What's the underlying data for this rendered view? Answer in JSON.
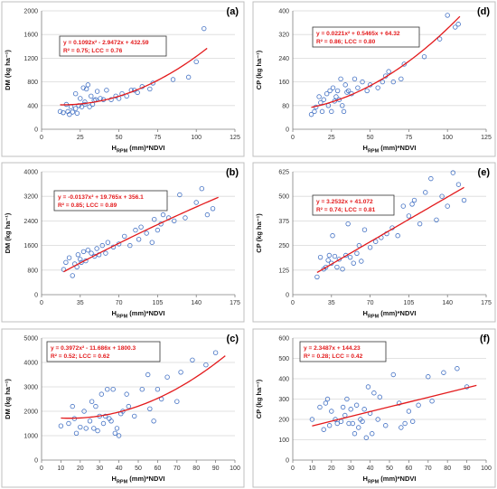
{
  "chart_data": [
    {
      "id": "a",
      "panel_label": "(a)",
      "type": "scatter",
      "xlabel_main": "H",
      "xlabel_sub": "RPM",
      "xlabel_rest": " (mm)*NDVI",
      "ylabel": "DM (kg ha⁻¹)",
      "xlim": [
        0,
        125
      ],
      "ylim": [
        0,
        2000
      ],
      "xticks": [
        0,
        25,
        50,
        75,
        100,
        125
      ],
      "yticks": [
        0,
        400,
        800,
        1200,
        1600,
        2000
      ],
      "fit": {
        "kind": "poly2",
        "a": 0.1092,
        "b": -2.9472,
        "c": 432.59,
        "xrange": [
          12,
          107
        ]
      },
      "equation": "y = 0.1092x² - 2.9472x + 432.59",
      "stats": "R² = 0.75; LCC = 0.76",
      "x": [
        12,
        14,
        16,
        17,
        18,
        19,
        20,
        22,
        22,
        23,
        24,
        25,
        26,
        27,
        28,
        28,
        29,
        30,
        31,
        32,
        33,
        34,
        35,
        36,
        38,
        40,
        42,
        45,
        48,
        50,
        52,
        55,
        58,
        60,
        62,
        65,
        70,
        72,
        85,
        95,
        100,
        105
      ],
      "y": [
        300,
        280,
        420,
        300,
        250,
        380,
        290,
        350,
        600,
        270,
        400,
        520,
        380,
        700,
        420,
        460,
        680,
        750,
        380,
        560,
        420,
        490,
        500,
        640,
        520,
        500,
        660,
        500,
        560,
        520,
        600,
        560,
        660,
        660,
        620,
        720,
        680,
        780,
        840,
        880,
        1140,
        1700
      ]
    },
    {
      "id": "d",
      "panel_label": "(d)",
      "type": "scatter",
      "xlabel_main": "H",
      "xlabel_sub": "RPM",
      "xlabel_rest": " (mm)*NDVI",
      "ylabel": "CP (kg ha⁻¹)",
      "xlim": [
        0,
        125
      ],
      "ylim": [
        0,
        400
      ],
      "xticks": [
        0,
        25,
        50,
        75,
        100,
        125
      ],
      "yticks": [
        0,
        80,
        160,
        240,
        320,
        400
      ],
      "fit": {
        "kind": "poly2",
        "a": 0.0221,
        "b": 0.5465,
        "c": 64.32,
        "xrange": [
          12,
          108
        ]
      },
      "equation": "y = 0.0221x² + 0.5465x + 64.32",
      "stats": "R² = 0.86; LCC = 0.80",
      "x": [
        12,
        14,
        15,
        17,
        18,
        19,
        20,
        22,
        23,
        24,
        25,
        26,
        27,
        28,
        29,
        30,
        31,
        32,
        33,
        34,
        35,
        36,
        38,
        40,
        42,
        45,
        48,
        50,
        55,
        58,
        60,
        62,
        65,
        70,
        72,
        85,
        95,
        100,
        105,
        107
      ],
      "y": [
        50,
        60,
        75,
        110,
        90,
        60,
        100,
        120,
        80,
        130,
        60,
        140,
        95,
        110,
        130,
        100,
        170,
        80,
        60,
        150,
        125,
        130,
        120,
        170,
        140,
        160,
        130,
        150,
        140,
        160,
        180,
        195,
        160,
        170,
        220,
        245,
        305,
        385,
        345,
        355
      ]
    },
    {
      "id": "b",
      "panel_label": "(b)",
      "type": "scatter",
      "xlabel_main": "H",
      "xlabel_sub": "RPM",
      "xlabel_rest": " (mm)*NDVI",
      "ylabel": "DM (kg ha⁻¹)",
      "xlim": [
        0,
        175
      ],
      "ylim": [
        0,
        4000
      ],
      "xticks": [
        0,
        35,
        70,
        105,
        140,
        175
      ],
      "yticks": [
        0,
        800,
        1600,
        2400,
        3200,
        4000
      ],
      "fit": {
        "kind": "poly2",
        "a": -0.0137,
        "b": 19.765,
        "c": 356.1,
        "xrange": [
          20,
          160
        ]
      },
      "equation": "y = -0.0137x² + 19.765x + 356.1",
      "stats": "R² = 0.85; LCC = 0.89",
      "x": [
        20,
        22,
        25,
        28,
        30,
        32,
        33,
        35,
        36,
        38,
        40,
        42,
        45,
        48,
        50,
        52,
        55,
        58,
        60,
        65,
        70,
        75,
        80,
        85,
        88,
        90,
        95,
        100,
        102,
        105,
        108,
        110,
        115,
        120,
        125,
        130,
        140,
        145,
        150,
        155
      ],
      "y": [
        820,
        1050,
        1200,
        620,
        1000,
        900,
        1300,
        1150,
        1050,
        1400,
        1100,
        1450,
        1350,
        1250,
        1500,
        1300,
        1600,
        1350,
        1700,
        1550,
        1650,
        1900,
        1600,
        2100,
        1800,
        2200,
        2000,
        1700,
        2450,
        2100,
        2300,
        2600,
        2500,
        2400,
        3250,
        2500,
        3000,
        3450,
        2600,
        2800
      ]
    },
    {
      "id": "e",
      "panel_label": "(e)",
      "type": "scatter",
      "xlabel_main": "H",
      "xlabel_sub": "RPM",
      "xlabel_rest": " (mm)*NDVI",
      "ylabel": "CP (kg ha⁻¹)",
      "xlim": [
        0,
        175
      ],
      "ylim": [
        0,
        625
      ],
      "xticks": [
        0,
        35,
        70,
        105,
        140,
        175
      ],
      "yticks": [
        0,
        125,
        250,
        375,
        500,
        625
      ],
      "fit": {
        "kind": "linear",
        "m": 3.2532,
        "c": 41.072,
        "xrange": [
          22,
          155
        ]
      },
      "equation": "y = 3.2532x + 41.072",
      "stats": "R² = 0.74; LCC = 0.81",
      "x": [
        22,
        25,
        28,
        30,
        32,
        33,
        35,
        36,
        38,
        40,
        42,
        45,
        48,
        50,
        52,
        55,
        58,
        60,
        62,
        65,
        70,
        75,
        80,
        85,
        90,
        95,
        100,
        105,
        108,
        110,
        115,
        120,
        125,
        130,
        135,
        140,
        145,
        150,
        155
      ],
      "y": [
        90,
        190,
        130,
        140,
        175,
        200,
        160,
        300,
        195,
        140,
        180,
        130,
        200,
        360,
        190,
        160,
        210,
        250,
        170,
        330,
        240,
        270,
        290,
        310,
        340,
        300,
        450,
        400,
        460,
        480,
        360,
        520,
        590,
        380,
        500,
        450,
        620,
        560,
        480
      ]
    },
    {
      "id": "c",
      "panel_label": "(c)",
      "type": "scatter",
      "xlabel_main": "H",
      "xlabel_sub": "RPM",
      "xlabel_rest": " (mm)*NDVI",
      "ylabel": "DM (kg ha⁻¹)",
      "xlim": [
        0,
        100
      ],
      "ylim": [
        0,
        5000
      ],
      "xticks": [
        0,
        10,
        20,
        30,
        40,
        50,
        60,
        70,
        80,
        90,
        100
      ],
      "yticks": [
        0,
        1000,
        2000,
        3000,
        4000,
        5000
      ],
      "fit": {
        "kind": "poly2",
        "a": 0.3972,
        "b": -11.686,
        "c": 1800.3,
        "xrange": [
          10,
          95
        ]
      },
      "equation": "y = 0.3972x² - 11.686x + 1800.3",
      "stats": "R² = 0.52; LCC = 0.62",
      "x": [
        10,
        14,
        16,
        17,
        18,
        20,
        22,
        23,
        25,
        26,
        27,
        28,
        29,
        30,
        31,
        32,
        33,
        34,
        35,
        36,
        37,
        38,
        39,
        40,
        41,
        42,
        44,
        45,
        48,
        52,
        55,
        56,
        58,
        60,
        62,
        65,
        70,
        72,
        78,
        85,
        90
      ],
      "y": [
        1400,
        1500,
        2200,
        1700,
        1100,
        1350,
        2000,
        1300,
        1600,
        2400,
        1300,
        2200,
        1200,
        1800,
        2700,
        1500,
        1800,
        2900,
        1700,
        1600,
        2900,
        1100,
        1300,
        1000,
        1900,
        2000,
        2700,
        2200,
        1800,
        2900,
        3500,
        2100,
        1600,
        2900,
        2500,
        3400,
        2400,
        3600,
        4100,
        3900,
        4400
      ]
    },
    {
      "id": "f",
      "panel_label": "(f)",
      "type": "scatter",
      "xlabel_main": "H",
      "xlabel_sub": "RPM",
      "xlabel_rest": " (mm)*NDVI",
      "ylabel": "CP (kg ha⁻¹)",
      "xlim": [
        0,
        100
      ],
      "ylim": [
        0,
        600
      ],
      "xticks": [
        0,
        10,
        20,
        30,
        40,
        50,
        60,
        70,
        80,
        90,
        100
      ],
      "yticks": [
        0,
        100,
        200,
        300,
        400,
        500,
        600
      ],
      "fit": {
        "kind": "linear",
        "m": 2.3487,
        "c": 144.23,
        "xrange": [
          10,
          95
        ]
      },
      "equation": "y = 2.3487x + 144.23",
      "stats": "R² = 0.28; LCC = 0.42",
      "x": [
        10,
        14,
        16,
        17,
        18,
        19,
        20,
        22,
        23,
        25,
        26,
        27,
        28,
        29,
        30,
        31,
        32,
        33,
        34,
        35,
        36,
        37,
        38,
        39,
        40,
        41,
        42,
        44,
        45,
        48,
        52,
        55,
        56,
        58,
        60,
        62,
        65,
        70,
        72,
        78,
        85,
        90
      ],
      "y": [
        200,
        260,
        150,
        280,
        300,
        170,
        240,
        200,
        180,
        190,
        260,
        220,
        300,
        180,
        250,
        180,
        130,
        270,
        160,
        200,
        190,
        250,
        110,
        360,
        230,
        130,
        330,
        200,
        310,
        170,
        420,
        280,
        160,
        180,
        240,
        190,
        270,
        410,
        290,
        430,
        450,
        360
      ]
    }
  ]
}
